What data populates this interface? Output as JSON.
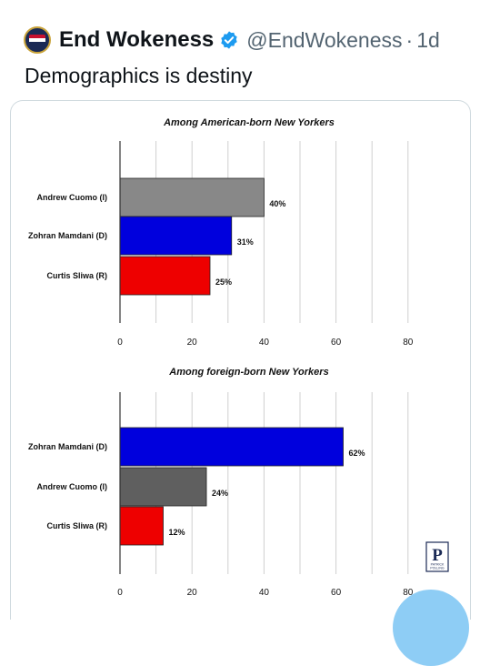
{
  "tweet": {
    "display_name": "End Wokeness",
    "handle": "@EndWokeness",
    "separator": "·",
    "time": "1d",
    "text": "Demographics is destiny",
    "verified_color": "#1d9bf0"
  },
  "chart_data": [
    {
      "type": "bar",
      "orientation": "horizontal",
      "title": "Among American-born New Yorkers",
      "categories": [
        "Andrew Cuomo (I)",
        "Zohran Mamdani (D)",
        "Curtis Sliwa (R)"
      ],
      "values": [
        40,
        31,
        25
      ],
      "value_labels": [
        "40%",
        "31%",
        "25%"
      ],
      "colors": [
        "#888888",
        "#0000dd",
        "#ee0000"
      ],
      "xlim": [
        0,
        85
      ],
      "xticks": [
        0,
        20,
        40,
        60,
        80
      ],
      "grid": true
    },
    {
      "type": "bar",
      "orientation": "horizontal",
      "title": "Among foreign-born New Yorkers",
      "categories": [
        "Zohran Mamdani (D)",
        "Andrew Cuomo (I)",
        "Curtis Sliwa (R)"
      ],
      "values": [
        62,
        24,
        12
      ],
      "value_labels": [
        "62%",
        "24%",
        "12%"
      ],
      "colors": [
        "#0000dd",
        "#5f5f5f",
        "#ee0000"
      ],
      "xlim": [
        0,
        85
      ],
      "xticks": [
        0,
        20,
        40,
        60,
        80
      ],
      "grid": true
    }
  ],
  "logo": {
    "letter": "P",
    "text_line1": "PATRICK",
    "text_line2": "POLLING"
  }
}
